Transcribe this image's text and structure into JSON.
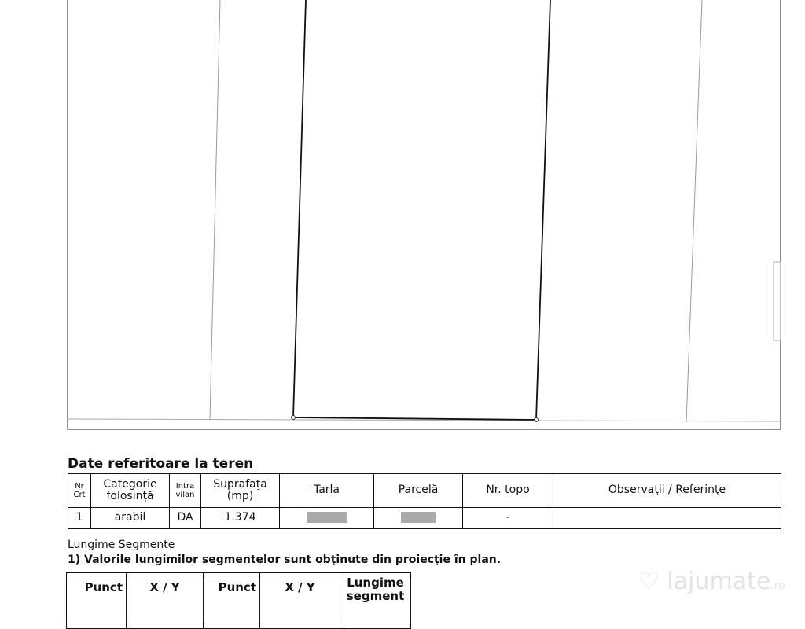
{
  "section_title": "Date referitoare la teren",
  "land_table": {
    "headers": {
      "nr_crt": [
        "Nr",
        "Crt"
      ],
      "categorie": [
        "Categorie",
        "folosință"
      ],
      "intravilan": [
        "Intra",
        "vilan"
      ],
      "suprafata": [
        "Suprafaţa",
        "(mp)"
      ],
      "tarla": "Tarla",
      "parcela": "Parcelă",
      "nr_topo": "Nr. topo",
      "observatii": "Observaţii / Referinţe"
    },
    "rows": [
      {
        "nr_crt": "1",
        "categorie": "arabil",
        "intravilan": "DA",
        "suprafata": "1.374",
        "tarla": "",
        "parcela": "",
        "nr_topo": "-",
        "observatii": ""
      }
    ]
  },
  "segments": {
    "title": "Lungime Segmente",
    "note": "1) Valorile lungimilor segmentelor sunt obţinute din proiecţie în plan.",
    "headers": {
      "punct_inceput": "Punct",
      "xy1": "X / Y",
      "punct_sfarsit": "Punct",
      "xy2": "X / Y",
      "lungime": [
        "Lungime",
        "segment"
      ]
    }
  },
  "watermark": "lajumate.ro"
}
